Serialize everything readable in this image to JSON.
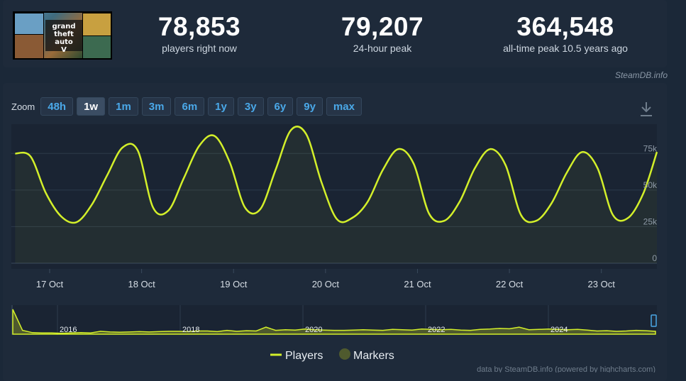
{
  "stats": [
    {
      "value": "78,853",
      "label": "players right now"
    },
    {
      "value": "79,207",
      "label": "24-hour peak"
    },
    {
      "value": "364,548",
      "label": "all-time peak 10.5 years ago"
    }
  ],
  "game_logo": {
    "text_lines": [
      "grand",
      "theft",
      "auto",
      "V"
    ]
  },
  "credit_top": "SteamDB.info",
  "zoom": {
    "label": "Zoom",
    "buttons": [
      "48h",
      "1w",
      "1m",
      "3m",
      "6m",
      "1y",
      "3y",
      "6y",
      "9y",
      "max"
    ],
    "active": "1w"
  },
  "icons": {
    "download": "download-icon"
  },
  "colors": {
    "line": "#d3ef2a",
    "marker": "#4f5a2e",
    "background": "#1b2838",
    "panel": "#1e2a3a",
    "link": "#4aa8e8"
  },
  "chart_data": {
    "type": "line",
    "x_tick_labels": [
      "17 Oct",
      "18 Oct",
      "19 Oct",
      "20 Oct",
      "21 Oct",
      "22 Oct",
      "23 Oct"
    ],
    "y_tick_labels": [
      "0",
      "25k",
      "50k",
      "75k"
    ],
    "ylim": [
      0,
      95000
    ],
    "grid": true,
    "x_start": "16 Oct 14:00",
    "x_end": "23 Oct 14:30",
    "series": [
      {
        "name": "Players",
        "points": [
          [
            "16 Oct 15:00",
            75000
          ],
          [
            "16 Oct 19:00",
            73000
          ],
          [
            "16 Oct 23:00",
            48000
          ],
          [
            "17 Oct 03:00",
            32000
          ],
          [
            "17 Oct 07:00",
            28000
          ],
          [
            "17 Oct 11:00",
            40000
          ],
          [
            "17 Oct 15:00",
            60000
          ],
          [
            "17 Oct 19:00",
            79000
          ],
          [
            "17 Oct 23:00",
            77000
          ],
          [
            "18 Oct 03:00",
            38000
          ],
          [
            "18 Oct 07:00",
            36000
          ],
          [
            "18 Oct 11:00",
            58000
          ],
          [
            "18 Oct 15:00",
            80000
          ],
          [
            "18 Oct 19:00",
            87000
          ],
          [
            "18 Oct 23:00",
            69000
          ],
          [
            "19 Oct 03:00",
            38000
          ],
          [
            "19 Oct 07:00",
            37000
          ],
          [
            "19 Oct 11:00",
            64000
          ],
          [
            "19 Oct 15:00",
            91000
          ],
          [
            "19 Oct 19:00",
            88000
          ],
          [
            "19 Oct 23:00",
            55000
          ],
          [
            "20 Oct 03:00",
            30000
          ],
          [
            "20 Oct 07:00",
            31000
          ],
          [
            "20 Oct 11:00",
            42000
          ],
          [
            "20 Oct 15:00",
            64000
          ],
          [
            "20 Oct 19:00",
            78000
          ],
          [
            "20 Oct 23:00",
            68000
          ],
          [
            "21 Oct 03:00",
            34000
          ],
          [
            "21 Oct 07:00",
            29000
          ],
          [
            "21 Oct 11:00",
            42000
          ],
          [
            "21 Oct 15:00",
            65000
          ],
          [
            "21 Oct 19:00",
            78000
          ],
          [
            "21 Oct 23:00",
            67000
          ],
          [
            "22 Oct 03:00",
            33000
          ],
          [
            "22 Oct 07:00",
            29000
          ],
          [
            "22 Oct 11:00",
            41000
          ],
          [
            "22 Oct 15:00",
            62000
          ],
          [
            "22 Oct 19:00",
            76000
          ],
          [
            "22 Oct 23:00",
            65000
          ],
          [
            "23 Oct 03:00",
            33000
          ],
          [
            "23 Oct 07:00",
            31000
          ],
          [
            "23 Oct 11:00",
            48000
          ],
          [
            "23 Oct 14:30",
            76000
          ]
        ]
      }
    ],
    "navigator": {
      "x_tick_labels": [
        "2016",
        "2018",
        "2020",
        "2022",
        "2024"
      ],
      "values": [
        78,
        12,
        5,
        4,
        4,
        3,
        4,
        5,
        4,
        9,
        7,
        6,
        7,
        8,
        7,
        8,
        9,
        9,
        8,
        10,
        10,
        8,
        12,
        9,
        11,
        10,
        22,
        12,
        14,
        13,
        16,
        14,
        13,
        12,
        12,
        13,
        14,
        13,
        12,
        15,
        14,
        13,
        16,
        15,
        14,
        15,
        13,
        12,
        15,
        16,
        18,
        17,
        22,
        14,
        15,
        16,
        15,
        14,
        15,
        13,
        10,
        11,
        9,
        10,
        12,
        11,
        9
      ]
    },
    "legend": [
      "Players",
      "Markers"
    ],
    "credit": "data by SteamDB.info (powered by highcharts.com)"
  }
}
